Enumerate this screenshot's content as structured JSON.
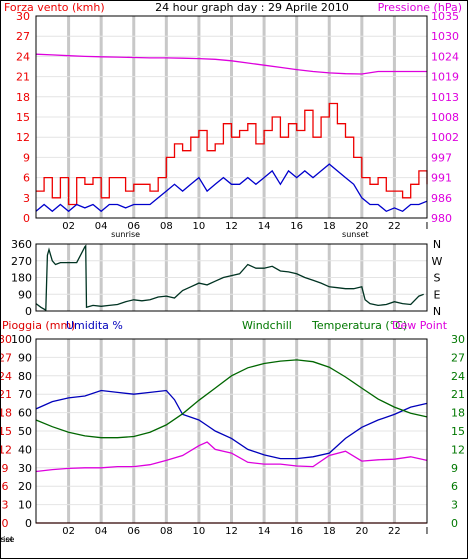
{
  "colors": {
    "wind": "#ee0000",
    "wind_avg": "#0000cc",
    "pressure": "#dd00dd",
    "direction": "#003322",
    "humidity": "#0000bb",
    "temperature": "#006600",
    "rain": "#dd0000",
    "dewpoint": "#dd00dd",
    "grid": "#c8c8c8",
    "frame": "#000000"
  },
  "chart_data": [
    {
      "type": "line",
      "title": "24 hour graph day : 29 Aprile 2010",
      "left_axis_label": "Forza vento (kmh)",
      "right_axis_label": "Pressione (hPa)",
      "x_ticks": [
        "02",
        "04",
        "06",
        "08",
        "10",
        "12",
        "14",
        "16",
        "18",
        "20",
        "22"
      ],
      "x_ticks_right": "I",
      "sunrise_label": "sunrise",
      "sunset_label": "sunset",
      "sunrise_hour": 5.5,
      "sunset_hour": 19.6,
      "ylim_left": [
        0,
        30
      ],
      "yticks_left": [
        "0",
        "3",
        "6",
        "9",
        "12",
        "15",
        "18",
        "21",
        "24",
        "27",
        "30"
      ],
      "ylim_right": [
        980,
        1035
      ],
      "yticks_right": [
        "980",
        "986",
        "991",
        "997",
        "1002",
        "1008",
        "1013",
        "1019",
        "1024",
        "1030",
        "1035"
      ],
      "series": [
        {
          "name": "Forza vento (kmh)",
          "axis": "left",
          "x": [
            0,
            0.5,
            1,
            1.5,
            2,
            2.5,
            3,
            3.5,
            4,
            4.5,
            5,
            5.5,
            6,
            6.5,
            7,
            7.5,
            8,
            8.5,
            9,
            9.5,
            10,
            10.5,
            11,
            11.5,
            12,
            12.5,
            13,
            13.5,
            14,
            14.5,
            15,
            15.5,
            16,
            16.5,
            17,
            17.5,
            18,
            18.5,
            19,
            19.5,
            20,
            20.5,
            21,
            21.5,
            22,
            22.5,
            23,
            23.5,
            24
          ],
          "y": [
            4,
            6,
            3,
            6,
            2,
            6,
            5,
            6,
            3,
            6,
            6,
            4,
            5,
            5,
            4,
            6,
            9,
            11,
            10,
            12,
            13,
            10,
            11,
            14,
            12,
            13,
            14,
            11,
            13,
            15,
            12,
            14,
            13,
            16,
            12,
            15,
            17,
            14,
            12,
            9,
            6,
            5,
            6,
            4,
            4,
            3,
            5,
            7,
            5
          ]
        },
        {
          "name": "",
          "axis": "left",
          "x": [
            0,
            0.5,
            1,
            1.5,
            2,
            2.5,
            3,
            3.5,
            4,
            4.5,
            5,
            5.5,
            6,
            6.5,
            7,
            7.5,
            8,
            8.5,
            9,
            9.5,
            10,
            10.5,
            11,
            11.5,
            12,
            12.5,
            13,
            13.5,
            14,
            14.5,
            15,
            15.5,
            16,
            16.5,
            17,
            17.5,
            18,
            18.5,
            19,
            19.5,
            20,
            20.5,
            21,
            21.5,
            22,
            22.5,
            23,
            23.5,
            24
          ],
          "y": [
            1,
            2,
            1,
            2,
            1,
            2,
            1.5,
            2,
            1,
            2,
            2,
            1.5,
            2,
            2,
            2,
            3,
            4,
            5,
            4,
            5,
            6,
            4,
            5,
            6,
            5,
            5,
            6,
            5,
            6,
            7,
            5,
            7,
            6,
            7,
            6,
            7,
            8,
            7,
            6,
            5,
            3,
            2,
            2,
            1,
            1.5,
            1,
            2,
            2,
            2.5
          ]
        },
        {
          "name": "Pressione (hPa)",
          "axis": "right",
          "x": [
            0,
            1,
            2,
            3,
            4,
            5,
            6,
            7,
            8,
            9,
            10,
            11,
            12,
            13,
            14,
            15,
            16,
            17,
            18,
            19,
            20,
            21,
            22,
            23,
            24
          ],
          "y": [
            1024.6,
            1024.4,
            1024.2,
            1024.0,
            1023.9,
            1023.8,
            1023.7,
            1023.6,
            1023.6,
            1023.5,
            1023.4,
            1023.2,
            1022.8,
            1022.2,
            1021.6,
            1021.0,
            1020.4,
            1019.9,
            1019.5,
            1019.3,
            1019.2,
            1019.9,
            1019.9,
            1019.9,
            1019.9
          ]
        }
      ]
    },
    {
      "type": "line",
      "title": "",
      "ylim": [
        0,
        360
      ],
      "yticks": [
        "0",
        "90",
        "180",
        "270",
        "360"
      ],
      "right_labels": [
        "N",
        "E",
        "S",
        "W",
        "N"
      ],
      "series": [
        {
          "name": "",
          "x": [
            0,
            0.3,
            0.6,
            0.7,
            0.8,
            1.0,
            1.2,
            1.5,
            2,
            2.5,
            3,
            3.05,
            3.1,
            3.5,
            4,
            4.5,
            5,
            5.5,
            6,
            6.5,
            7,
            7.5,
            8,
            8.5,
            9,
            9.5,
            10,
            10.5,
            11,
            11.5,
            12,
            12.5,
            13,
            13.5,
            14,
            14.5,
            15,
            15.5,
            16,
            16.5,
            17,
            17.5,
            18,
            18.5,
            19,
            19.5,
            20,
            20.2,
            20.5,
            21,
            21.5,
            22,
            22.5,
            23,
            23.5,
            23.8
          ],
          "y": [
            40,
            20,
            5,
            300,
            330,
            270,
            250,
            260,
            260,
            260,
            345,
            350,
            20,
            30,
            25,
            30,
            35,
            50,
            60,
            55,
            60,
            75,
            80,
            70,
            110,
            130,
            150,
            140,
            160,
            180,
            190,
            200,
            250,
            230,
            230,
            240,
            215,
            210,
            200,
            180,
            165,
            150,
            130,
            125,
            120,
            120,
            130,
            60,
            40,
            30,
            35,
            50,
            40,
            35,
            80,
            90
          ]
        }
      ]
    },
    {
      "type": "line",
      "title": "",
      "left_labels": [
        "Pioggia (mm)",
        "Umidita %"
      ],
      "right_labels": [
        "Windchill",
        "Temperatura (°C)",
        "Dew Point"
      ],
      "x_ticks": [
        "02",
        "04",
        "06",
        "08",
        "10",
        "12",
        "14",
        "16",
        "18",
        "20",
        "22"
      ],
      "x_ticks_right": "I",
      "sunrise_label": "sunrise",
      "sunset_label": "sunset",
      "ylim_left_outer": [
        0,
        30
      ],
      "yticks_left_outer": [
        "0",
        "3",
        "6",
        "9",
        "12",
        "15",
        "18",
        "21",
        "24",
        "27",
        "30"
      ],
      "ylim_left_inner": [
        0,
        100
      ],
      "yticks_left_inner": [
        "0",
        "10",
        "20",
        "30",
        "40",
        "50",
        "60",
        "70",
        "80",
        "90",
        "100"
      ],
      "ylim_right": [
        0,
        30
      ],
      "yticks_right": [
        "0",
        "3",
        "6",
        "9",
        "12",
        "15",
        "18",
        "21",
        "24",
        "27",
        "30"
      ],
      "series": [
        {
          "name": "Umidita %",
          "axis": "left_inner",
          "x": [
            0,
            1,
            2,
            3,
            4,
            5,
            6,
            7,
            8,
            8.5,
            9,
            10,
            10.5,
            11,
            12,
            13,
            14,
            15,
            16,
            17,
            18,
            19,
            20,
            21,
            22,
            23,
            24
          ],
          "y": [
            62,
            66,
            68,
            69,
            72,
            71,
            70,
            71,
            72,
            67,
            59,
            56,
            53,
            50,
            46,
            40,
            37,
            35,
            35,
            36,
            38,
            46,
            52,
            56,
            59,
            63,
            65
          ]
        },
        {
          "name": "Temperatura (°C)",
          "axis": "right",
          "x": [
            0,
            1,
            2,
            3,
            4,
            5,
            6,
            7,
            8,
            9,
            10,
            11,
            12,
            13,
            14,
            15,
            16,
            17,
            18,
            19,
            20,
            21,
            22,
            23,
            24
          ],
          "y": [
            16.8,
            15.7,
            14.8,
            14.2,
            13.9,
            13.9,
            14.1,
            14.8,
            16,
            17.8,
            20,
            22,
            24,
            25.3,
            26,
            26.4,
            26.6,
            26.3,
            25.4,
            23.8,
            22,
            20.2,
            18.9,
            17.9,
            17.3
          ]
        },
        {
          "name": "Dew Point",
          "axis": "right",
          "x": [
            0,
            1,
            2,
            3,
            4,
            5,
            6,
            7,
            8,
            9,
            10,
            10.5,
            11,
            12,
            13,
            14,
            15,
            16,
            17,
            18,
            19,
            20,
            21,
            22,
            23,
            24
          ],
          "y": [
            8.4,
            8.7,
            8.9,
            9.0,
            9.0,
            9.2,
            9.2,
            9.5,
            10.2,
            11,
            12.6,
            13.2,
            12,
            11.4,
            9.9,
            9.6,
            9.6,
            9.3,
            9.2,
            11,
            11.7,
            10.1,
            10.3,
            10.4,
            10.8,
            10.2
          ]
        },
        {
          "name": "Pioggia (mm)",
          "axis": "left_outer",
          "x": [
            0,
            24
          ],
          "y": [
            0,
            0
          ]
        }
      ]
    }
  ]
}
